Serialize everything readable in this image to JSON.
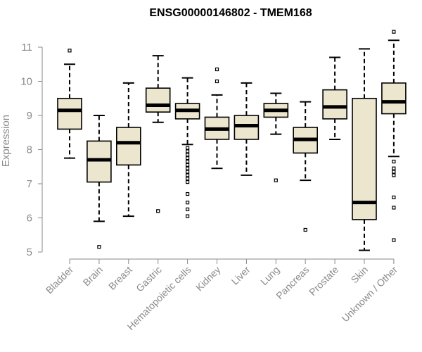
{
  "chart_data": {
    "type": "boxplot",
    "title": "ENSG00000146802 - TMEM168",
    "xlabel": "",
    "ylabel": "Expression",
    "ylim": [
      5,
      11.5
    ],
    "yticks": [
      5,
      6,
      7,
      8,
      9,
      10,
      11
    ],
    "box_color": "#ece6cf",
    "categories": [
      "Bladder",
      "Brain",
      "Breast",
      "Gastric",
      "Hematopoietic cells",
      "Kidney",
      "Liver",
      "Lung",
      "Pancreas",
      "Prostate",
      "Skin",
      "Unknown / Other"
    ],
    "boxes": [
      {
        "min": 7.75,
        "q1": 8.6,
        "median": 9.15,
        "q3": 9.5,
        "max": 10.5,
        "outliers": [
          10.9
        ]
      },
      {
        "min": 5.9,
        "q1": 7.05,
        "median": 7.7,
        "q3": 8.25,
        "max": 9.0,
        "outliers": [
          5.15
        ]
      },
      {
        "min": 6.05,
        "q1": 7.55,
        "median": 8.2,
        "q3": 8.65,
        "max": 9.95,
        "outliers": []
      },
      {
        "min": 8.8,
        "q1": 9.1,
        "median": 9.3,
        "q3": 9.8,
        "max": 10.75,
        "outliers": [
          6.2
        ]
      },
      {
        "min": 8.15,
        "q1": 8.9,
        "median": 9.15,
        "q3": 9.35,
        "max": 10.1,
        "outliers": [
          8.05,
          7.95,
          7.85,
          7.75,
          7.65,
          7.55,
          7.45,
          7.35,
          7.25,
          7.15,
          7.05,
          6.7,
          6.45,
          6.25,
          6.05
        ]
      },
      {
        "min": 7.45,
        "q1": 8.3,
        "median": 8.6,
        "q3": 8.95,
        "max": 9.6,
        "outliers": [
          10.0,
          10.35
        ]
      },
      {
        "min": 7.25,
        "q1": 8.3,
        "median": 8.7,
        "q3": 9.0,
        "max": 9.95,
        "outliers": []
      },
      {
        "min": 8.45,
        "q1": 8.95,
        "median": 9.15,
        "q3": 9.35,
        "max": 9.65,
        "outliers": [
          7.1
        ]
      },
      {
        "min": 7.1,
        "q1": 7.9,
        "median": 8.3,
        "q3": 8.65,
        "max": 9.4,
        "outliers": [
          5.65
        ]
      },
      {
        "min": 8.3,
        "q1": 8.9,
        "median": 9.25,
        "q3": 9.75,
        "max": 10.7,
        "outliers": []
      },
      {
        "min": 5.05,
        "q1": 5.95,
        "median": 6.45,
        "q3": 9.5,
        "max": 10.95,
        "outliers": []
      },
      {
        "min": 7.8,
        "q1": 9.05,
        "median": 9.4,
        "q3": 9.95,
        "max": 11.2,
        "outliers": [
          11.45,
          7.65,
          7.45,
          7.35,
          7.25,
          6.6,
          6.3,
          5.35
        ]
      }
    ]
  }
}
